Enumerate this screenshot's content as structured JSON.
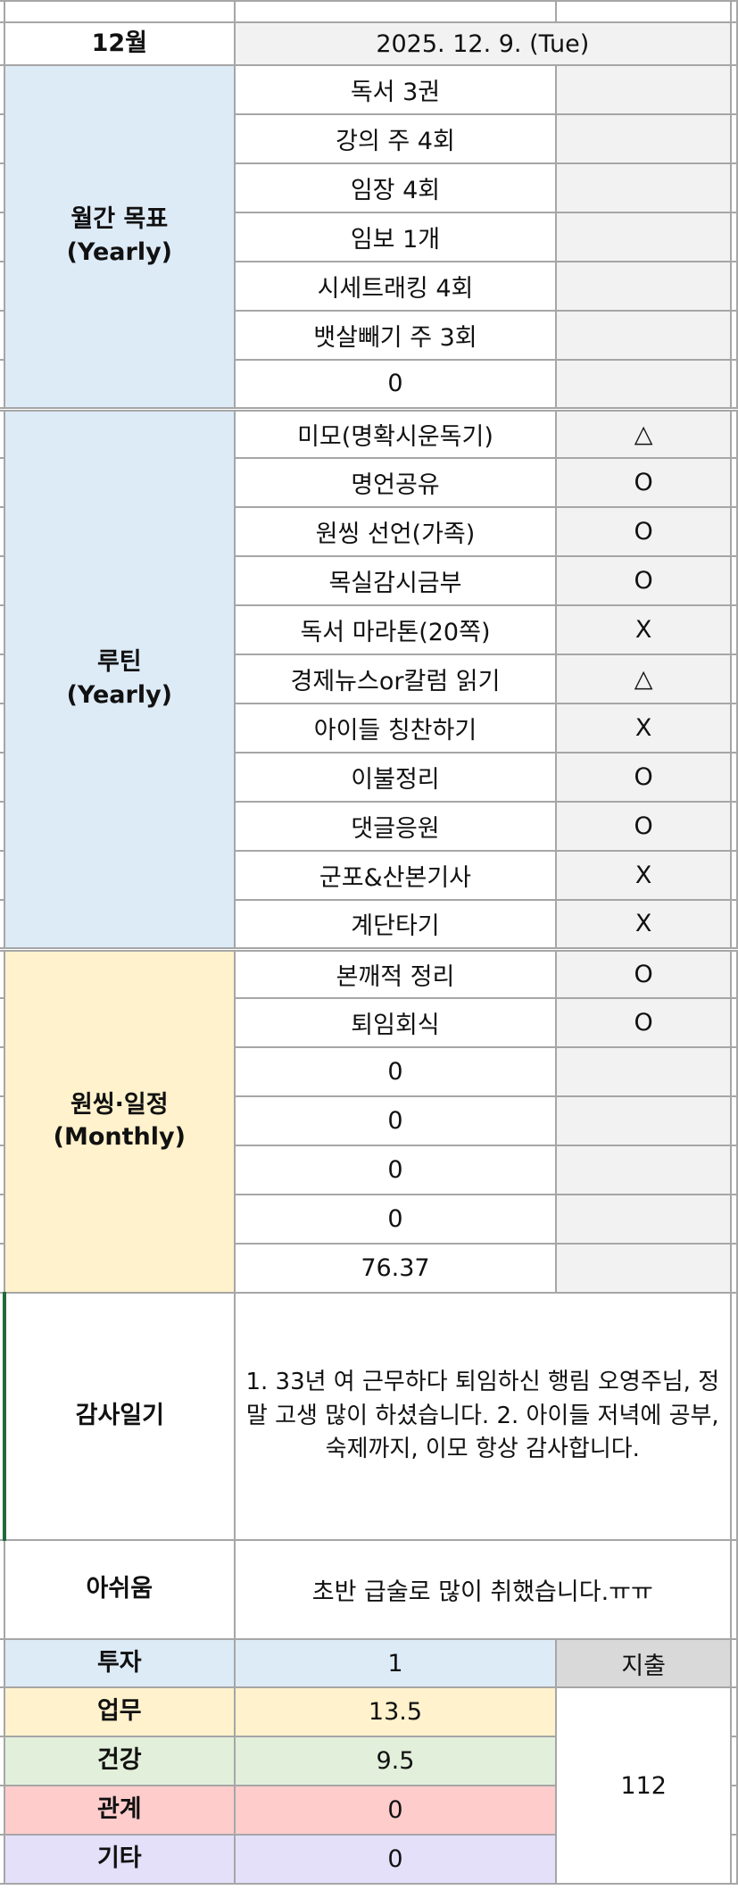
{
  "header": {
    "month": "12월",
    "date": "2025. 12. 9. (Tue)"
  },
  "goals": {
    "label": "월간 목표\n(Yearly)",
    "items": [
      {
        "text": "독서 3권",
        "mark": ""
      },
      {
        "text": "강의 주 4회",
        "mark": ""
      },
      {
        "text": "임장 4회",
        "mark": ""
      },
      {
        "text": "임보 1개",
        "mark": ""
      },
      {
        "text": "시세트래킹 4회",
        "mark": ""
      },
      {
        "text": "뱃살빼기 주 3회",
        "mark": ""
      },
      {
        "text": "0",
        "mark": ""
      }
    ]
  },
  "routine": {
    "label": "루틴\n(Yearly)",
    "items": [
      {
        "text": "미모(명확시운독기)",
        "mark": "△"
      },
      {
        "text": "명언공유",
        "mark": "O"
      },
      {
        "text": "원씽 선언(가족)",
        "mark": "O"
      },
      {
        "text": "목실감시금부",
        "mark": "O"
      },
      {
        "text": "독서 마라톤(20쪽)",
        "mark": "X"
      },
      {
        "text": "경제뉴스or칼럼 읽기",
        "mark": "△"
      },
      {
        "text": "아이들 칭찬하기",
        "mark": "X"
      },
      {
        "text": "이불정리",
        "mark": "O"
      },
      {
        "text": "댓글응원",
        "mark": "O"
      },
      {
        "text": "군포&산본기사",
        "mark": "X"
      },
      {
        "text": "계단타기",
        "mark": "X"
      }
    ]
  },
  "monthly": {
    "label": "원씽·일정\n(Monthly)",
    "items": [
      {
        "text": "본깨적 정리",
        "mark": "O"
      },
      {
        "text": "퇴임회식",
        "mark": "O"
      },
      {
        "text": "0",
        "mark": ""
      },
      {
        "text": "0",
        "mark": ""
      },
      {
        "text": "0",
        "mark": ""
      },
      {
        "text": "0",
        "mark": ""
      },
      {
        "text": "76.37",
        "mark": ""
      }
    ]
  },
  "gratitude": {
    "label": "감사일기",
    "text": "1. 33년 여 근무하다 퇴임하신 행림 오영주님, 정말 고생 많이 하셨습니다. 2. 아이들 저녁에 공부, 숙제까지, 이모 항상 감사합니다."
  },
  "regret": {
    "label": "아쉬움",
    "text": "초반 급술로 많이 취했습니다.ㅠㅠ"
  },
  "time": {
    "invest_label": "투자",
    "invest_value": "1",
    "expense_label": "지출",
    "expense_value": "112",
    "rows": [
      {
        "label": "업무",
        "value": "13.5"
      },
      {
        "label": "건강",
        "value": "9.5"
      },
      {
        "label": "관계",
        "value": "0"
      },
      {
        "label": "기타",
        "value": "0"
      }
    ]
  },
  "colors": {
    "goal_bg": "#ddebf7",
    "monthly_bg": "#fff2cc",
    "health_bg": "#e2efda",
    "relation_bg": "#ffcccc",
    "other_bg": "#e4e0fa"
  }
}
